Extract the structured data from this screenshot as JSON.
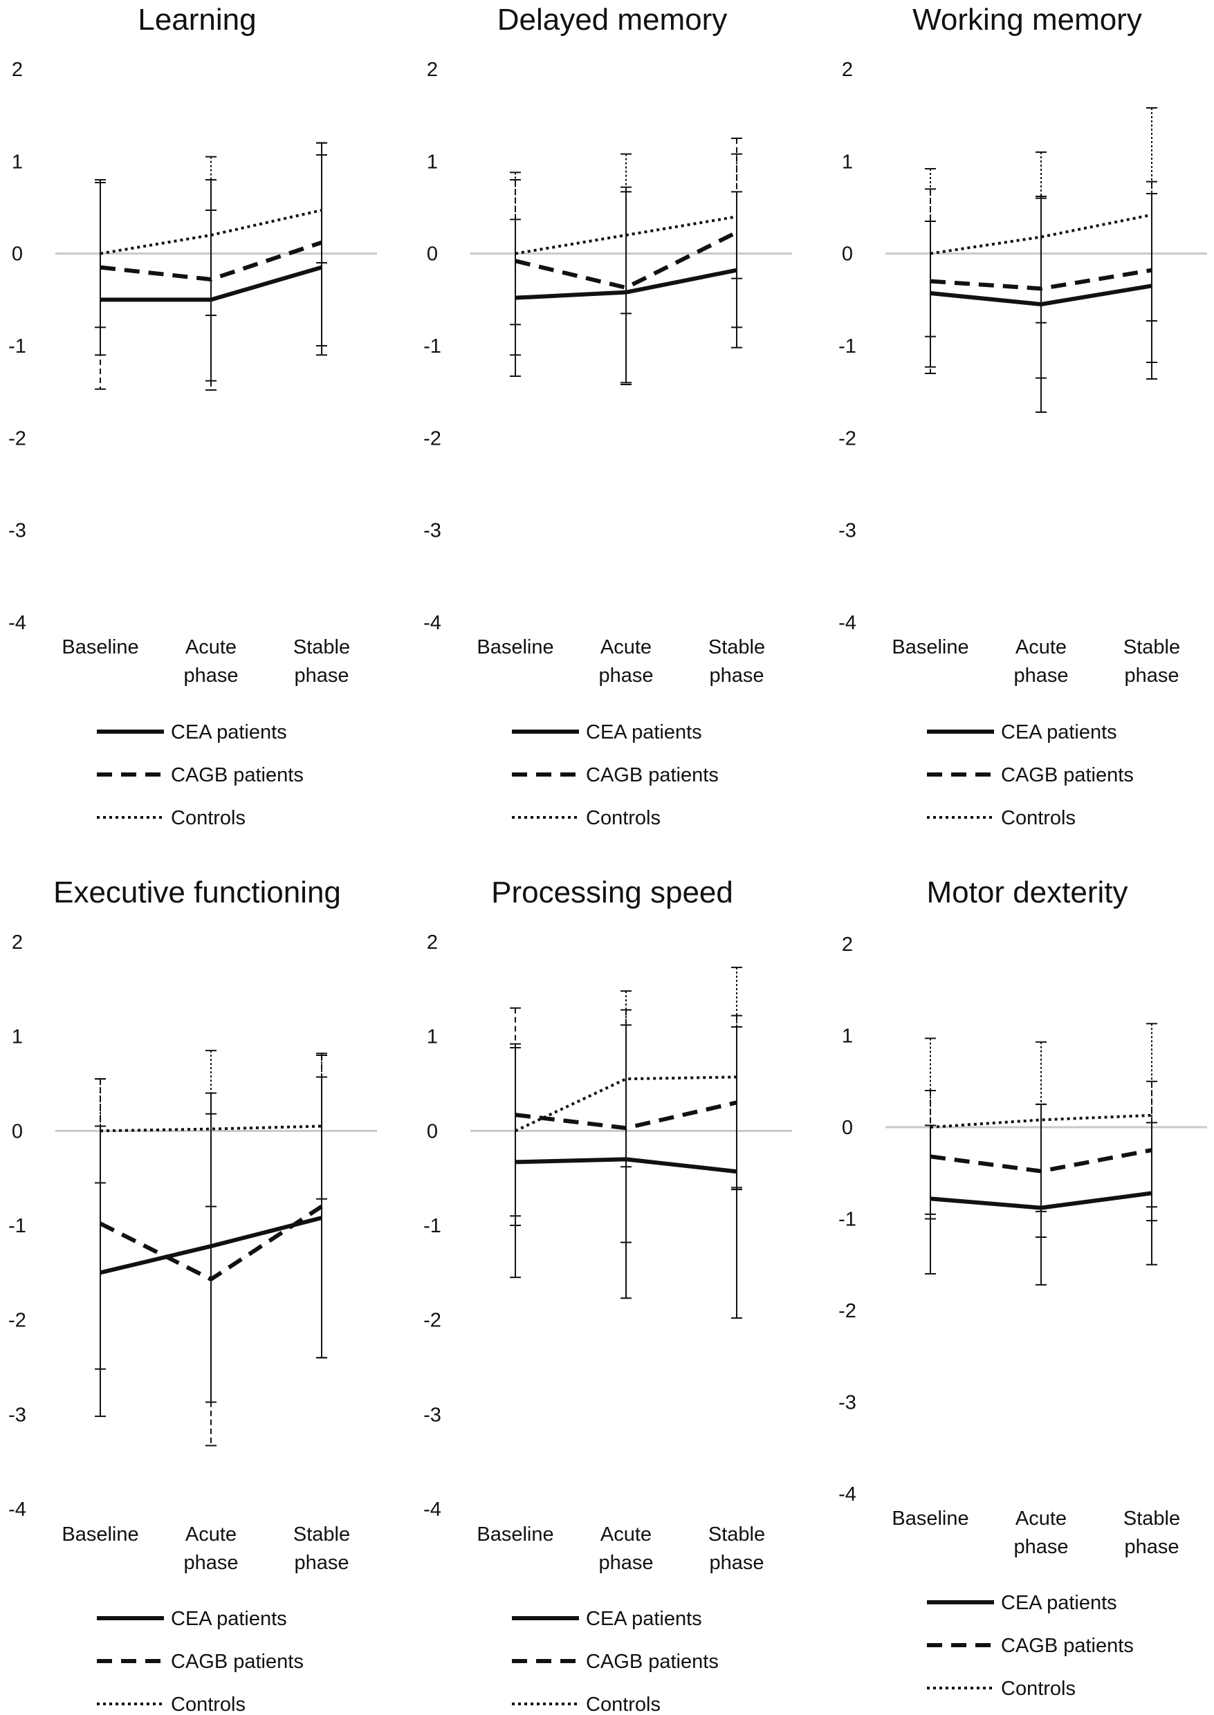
{
  "legend": {
    "series_names": [
      "CEA patients",
      "CAGB patients",
      "Controls"
    ],
    "styles": [
      "solid",
      "dashed",
      "dotted"
    ]
  },
  "chart_data": [
    {
      "type": "line",
      "title": "Learning",
      "categories": [
        "Baseline",
        "Acute phase",
        "Stable phase"
      ],
      "y_ticks": [
        2,
        1,
        0,
        -1,
        -2,
        -3,
        -4
      ],
      "ylim": [
        -4,
        2
      ],
      "series": [
        {
          "name": "CEA patients",
          "style": "solid",
          "values": [
            -0.5,
            -0.5,
            -0.15
          ],
          "err_low": [
            -1.1,
            -1.38,
            -1.1
          ],
          "err_high": [
            0.77,
            0.8,
            1.2
          ]
        },
        {
          "name": "CAGB patients",
          "style": "dashed",
          "values": [
            -0.15,
            -0.28,
            0.12
          ],
          "err_low": [
            -1.47,
            -1.48,
            -1.0
          ],
          "err_high": [
            0.8,
            0.47,
            1.2
          ]
        },
        {
          "name": "Controls",
          "style": "dotted",
          "values": [
            0.0,
            0.2,
            0.47
          ],
          "err_low": [
            -0.8,
            -0.67,
            -0.1
          ],
          "err_high": [
            0.8,
            1.05,
            1.07
          ]
        }
      ]
    },
    {
      "type": "line",
      "title": "Delayed memory",
      "categories": [
        "Baseline",
        "Acute phase",
        "Stable phase"
      ],
      "y_ticks": [
        2,
        1,
        0,
        -1,
        -2,
        -3,
        -4
      ],
      "ylim": [
        -4,
        2
      ],
      "series": [
        {
          "name": "CEA patients",
          "style": "solid",
          "values": [
            -0.48,
            -0.42,
            -0.18
          ],
          "err_low": [
            -1.33,
            -1.4,
            -1.02
          ],
          "err_high": [
            0.37,
            0.67,
            0.67
          ]
        },
        {
          "name": "CAGB patients",
          "style": "dashed",
          "values": [
            -0.08,
            -0.37,
            0.23
          ],
          "err_low": [
            -1.1,
            -1.42,
            -0.8
          ],
          "err_high": [
            0.8,
            0.72,
            1.25
          ]
        },
        {
          "name": "Controls",
          "style": "dotted",
          "values": [
            0.0,
            0.2,
            0.4
          ],
          "err_low": [
            -0.77,
            -0.65,
            -0.27
          ],
          "err_high": [
            0.88,
            1.08,
            1.08
          ]
        }
      ]
    },
    {
      "type": "line",
      "title": "Working memory",
      "categories": [
        "Baseline",
        "Acute phase",
        "Stable phase"
      ],
      "y_ticks": [
        2,
        1,
        0,
        -1,
        -2,
        -3,
        -4
      ],
      "ylim": [
        -4,
        2
      ],
      "series": [
        {
          "name": "CEA patients",
          "style": "solid",
          "values": [
            -0.43,
            -0.55,
            -0.35
          ],
          "err_low": [
            -1.23,
            -1.72,
            -1.36
          ],
          "err_high": [
            0.35,
            0.6,
            0.65
          ]
        },
        {
          "name": "CAGB patients",
          "style": "dashed",
          "values": [
            -0.3,
            -0.38,
            -0.18
          ],
          "err_low": [
            -1.3,
            -1.35,
            -1.18
          ],
          "err_high": [
            0.7,
            0.62,
            0.78
          ]
        },
        {
          "name": "Controls",
          "style": "dotted",
          "values": [
            0.0,
            0.18,
            0.42
          ],
          "err_low": [
            -0.9,
            -0.75,
            -0.73
          ],
          "err_high": [
            0.92,
            1.1,
            1.58
          ]
        }
      ]
    },
    {
      "type": "line",
      "title": "Executive functioning",
      "categories": [
        "Baseline",
        "Acute phase",
        "Stable phase"
      ],
      "y_ticks": [
        2,
        1,
        0,
        -1,
        -2,
        -3,
        -4
      ],
      "ylim": [
        -4,
        2
      ],
      "series": [
        {
          "name": "CEA patients",
          "style": "solid",
          "values": [
            -1.5,
            -1.22,
            -0.92
          ],
          "err_low": [
            -3.02,
            -2.87,
            -2.4
          ],
          "err_high": [
            0.05,
            0.4,
            0.57
          ]
        },
        {
          "name": "CAGB patients",
          "style": "dashed",
          "values": [
            -0.98,
            -1.57,
            -0.8
          ],
          "err_low": [
            -2.52,
            -3.33,
            -2.4
          ],
          "err_high": [
            0.55,
            0.18,
            0.8
          ]
        },
        {
          "name": "Controls",
          "style": "dotted",
          "values": [
            0.0,
            0.02,
            0.05
          ],
          "err_low": [
            -0.55,
            -0.8,
            -0.72
          ],
          "err_high": [
            0.55,
            0.85,
            0.82
          ]
        }
      ]
    },
    {
      "type": "line",
      "title": "Processing speed",
      "categories": [
        "Baseline",
        "Acute phase",
        "Stable phase"
      ],
      "y_ticks": [
        2,
        1,
        0,
        -1,
        -2,
        -3,
        -4
      ],
      "ylim": [
        -4,
        2
      ],
      "series": [
        {
          "name": "CEA patients",
          "style": "solid",
          "values": [
            -0.33,
            -0.3,
            -0.43
          ],
          "err_low": [
            -1.55,
            -1.77,
            -1.98
          ],
          "err_high": [
            0.88,
            1.12,
            1.1
          ]
        },
        {
          "name": "CAGB patients",
          "style": "dashed",
          "values": [
            0.17,
            0.03,
            0.3
          ],
          "err_low": [
            -0.9,
            -1.18,
            -0.6
          ],
          "err_high": [
            1.3,
            1.28,
            1.22
          ]
        },
        {
          "name": "Controls",
          "style": "dotted",
          "values": [
            0.0,
            0.55,
            0.57
          ],
          "err_low": [
            -1.0,
            -0.38,
            -0.62
          ],
          "err_high": [
            0.92,
            1.48,
            1.73
          ]
        }
      ]
    },
    {
      "type": "line",
      "title": "Motor dexterity",
      "categories": [
        "Baseline",
        "Acute phase",
        "Stable phase"
      ],
      "y_ticks": [
        2,
        1,
        0,
        -1,
        -2,
        -3,
        -4
      ],
      "ylim": [
        -4,
        2
      ],
      "series": [
        {
          "name": "CEA patients",
          "style": "solid",
          "values": [
            -0.78,
            -0.88,
            -0.72
          ],
          "err_low": [
            -1.6,
            -1.72,
            -1.5
          ],
          "err_high": [
            0.02,
            0.25,
            0.05
          ]
        },
        {
          "name": "CAGB patients",
          "style": "dashed",
          "values": [
            -0.32,
            -0.48,
            -0.25
          ],
          "err_low": [
            -1.0,
            -1.2,
            -1.02
          ],
          "err_high": [
            0.4,
            0.25,
            0.5
          ]
        },
        {
          "name": "Controls",
          "style": "dotted",
          "values": [
            0.0,
            0.08,
            0.13
          ],
          "err_low": [
            -0.95,
            -0.92,
            -0.87
          ],
          "err_high": [
            0.97,
            0.93,
            1.13
          ]
        }
      ]
    }
  ]
}
